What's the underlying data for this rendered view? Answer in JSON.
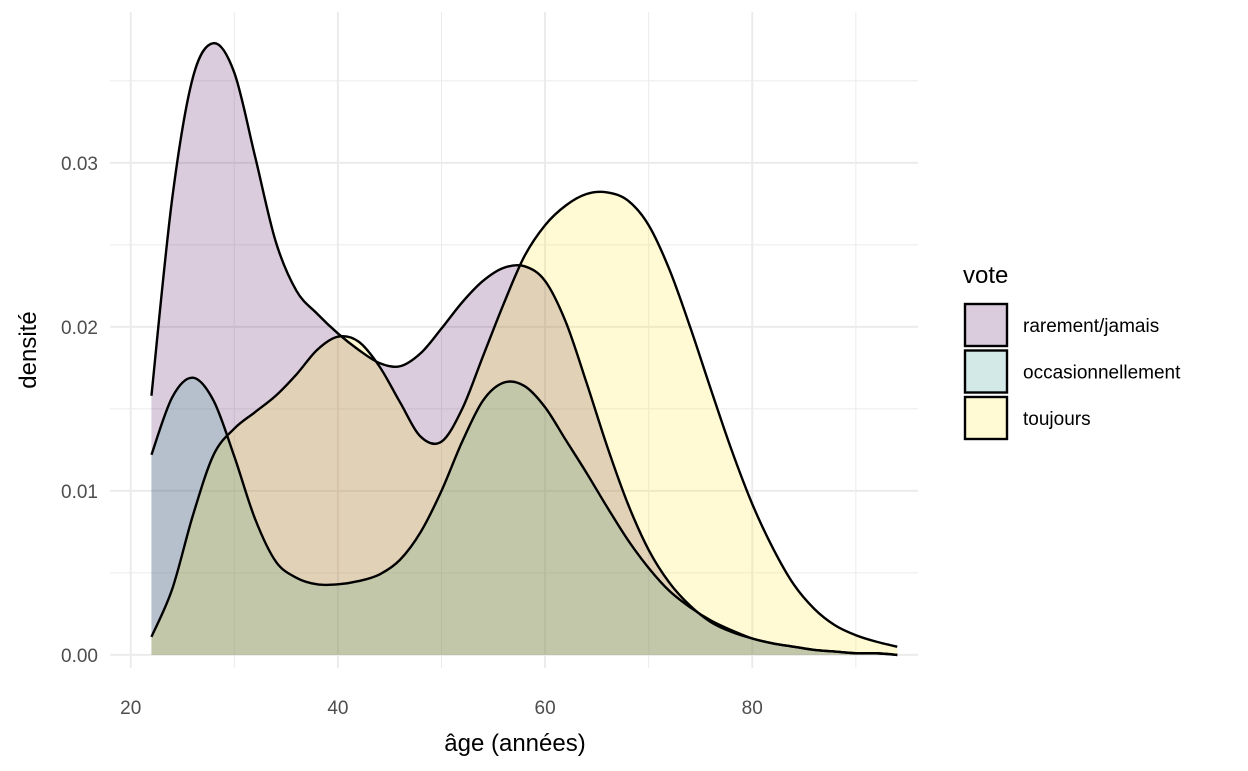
{
  "chart_data": {
    "type": "area",
    "xlabel": "âge (années)",
    "ylabel": "densité",
    "xlim": [
      18,
      96
    ],
    "ylim": [
      -0.0008,
      0.0392
    ],
    "x_ticks": [
      20,
      40,
      60,
      80
    ],
    "x_tick_labels": [
      "20",
      "40",
      "60",
      "80"
    ],
    "y_ticks": [
      0,
      0.01,
      0.02,
      0.03
    ],
    "y_tick_labels": [
      "0.00",
      "0.01",
      "0.02",
      "0.03"
    ],
    "grid": true,
    "legend": {
      "title": "vote",
      "position": "right"
    },
    "series": [
      {
        "name": "rarement/jamais",
        "color": "#440154",
        "fill_opacity": 0.2,
        "points": [
          [
            22,
            0.0158
          ],
          [
            24,
            0.0278
          ],
          [
            26,
            0.0352
          ],
          [
            28,
            0.0373
          ],
          [
            30,
            0.0355
          ],
          [
            32,
            0.0304
          ],
          [
            34,
            0.0252
          ],
          [
            36,
            0.0222
          ],
          [
            38,
            0.0208
          ],
          [
            40,
            0.0196
          ],
          [
            42,
            0.0186
          ],
          [
            44,
            0.0178
          ],
          [
            46,
            0.0176
          ],
          [
            48,
            0.0184
          ],
          [
            50,
            0.0199
          ],
          [
            52,
            0.0215
          ],
          [
            54,
            0.0228
          ],
          [
            56,
            0.0236
          ],
          [
            58,
            0.0237
          ],
          [
            60,
            0.0228
          ],
          [
            62,
            0.0203
          ],
          [
            64,
            0.0166
          ],
          [
            66,
            0.0127
          ],
          [
            68,
            0.0092
          ],
          [
            70,
            0.0064
          ],
          [
            72,
            0.0044
          ],
          [
            74,
            0.003
          ],
          [
            76,
            0.002
          ],
          [
            78,
            0.0014
          ],
          [
            80,
            0.001
          ],
          [
            82,
            0.0007
          ],
          [
            84,
            0.0005
          ],
          [
            86,
            0.0003
          ],
          [
            88,
            0.0002
          ],
          [
            90,
            0.0001
          ],
          [
            92,
            0.0001
          ],
          [
            94,
            0.0
          ]
        ]
      },
      {
        "name": "occasionnellement",
        "color": "#21908C",
        "fill_opacity": 0.2,
        "points": [
          [
            22,
            0.0122
          ],
          [
            24,
            0.0157
          ],
          [
            26,
            0.0169
          ],
          [
            28,
            0.0155
          ],
          [
            30,
            0.0121
          ],
          [
            32,
            0.0083
          ],
          [
            34,
            0.0057
          ],
          [
            36,
            0.0047
          ],
          [
            38,
            0.0043
          ],
          [
            40,
            0.0043
          ],
          [
            42,
            0.0045
          ],
          [
            44,
            0.0049
          ],
          [
            46,
            0.0058
          ],
          [
            48,
            0.0075
          ],
          [
            50,
            0.01
          ],
          [
            52,
            0.013
          ],
          [
            54,
            0.0155
          ],
          [
            56,
            0.0166
          ],
          [
            58,
            0.0164
          ],
          [
            60,
            0.0151
          ],
          [
            62,
            0.0131
          ],
          [
            64,
            0.0111
          ],
          [
            66,
            0.009
          ],
          [
            68,
            0.007
          ],
          [
            70,
            0.0053
          ],
          [
            72,
            0.0039
          ],
          [
            74,
            0.0029
          ],
          [
            76,
            0.0021
          ],
          [
            78,
            0.0015
          ],
          [
            80,
            0.001
          ],
          [
            82,
            0.0007
          ],
          [
            84,
            0.0005
          ],
          [
            86,
            0.0003
          ],
          [
            88,
            0.0002
          ],
          [
            90,
            0.0001
          ],
          [
            92,
            0.0001
          ],
          [
            94,
            0.0
          ]
        ]
      },
      {
        "name": "toujours",
        "color": "#FDE725",
        "fill_opacity": 0.2,
        "points": [
          [
            22,
            0.0011
          ],
          [
            24,
            0.004
          ],
          [
            26,
            0.0085
          ],
          [
            28,
            0.0122
          ],
          [
            30,
            0.0138
          ],
          [
            32,
            0.0148
          ],
          [
            34,
            0.0158
          ],
          [
            36,
            0.0171
          ],
          [
            38,
            0.0186
          ],
          [
            40,
            0.0194
          ],
          [
            42,
            0.0191
          ],
          [
            44,
            0.0176
          ],
          [
            46,
            0.0154
          ],
          [
            48,
            0.0133
          ],
          [
            50,
            0.013
          ],
          [
            52,
            0.015
          ],
          [
            54,
            0.0182
          ],
          [
            56,
            0.0214
          ],
          [
            58,
            0.0243
          ],
          [
            60,
            0.0262
          ],
          [
            62,
            0.0274
          ],
          [
            64,
            0.0281
          ],
          [
            66,
            0.0282
          ],
          [
            68,
            0.0277
          ],
          [
            70,
            0.0262
          ],
          [
            72,
            0.0235
          ],
          [
            74,
            0.02
          ],
          [
            76,
            0.0162
          ],
          [
            78,
            0.0125
          ],
          [
            80,
            0.0092
          ],
          [
            82,
            0.0065
          ],
          [
            84,
            0.0043
          ],
          [
            86,
            0.0028
          ],
          [
            88,
            0.0018
          ],
          [
            90,
            0.0012
          ],
          [
            92,
            0.0008
          ],
          [
            94,
            0.0005
          ]
        ]
      }
    ]
  }
}
